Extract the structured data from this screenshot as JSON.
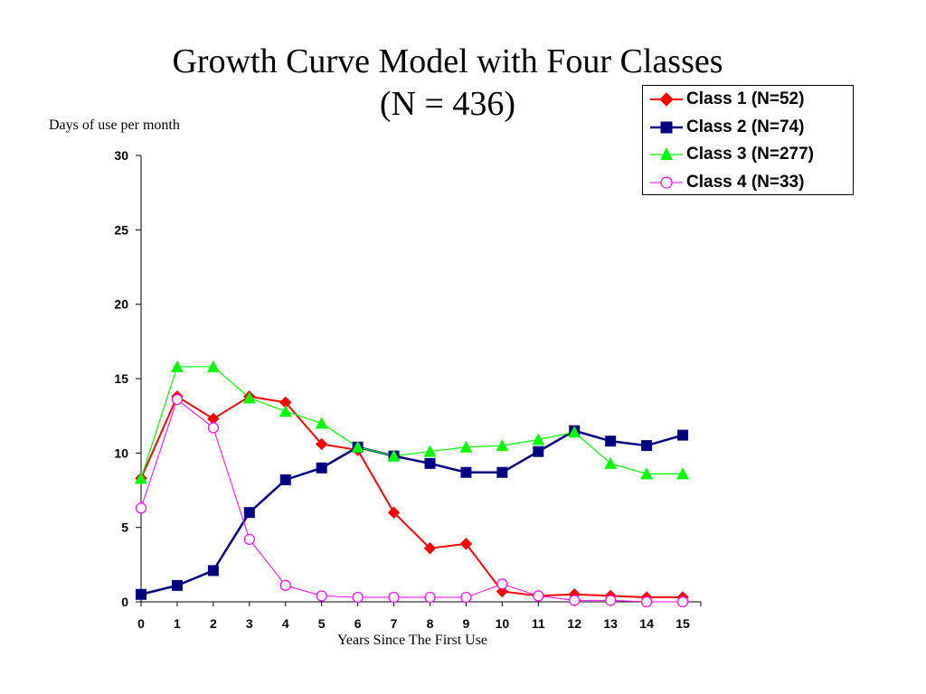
{
  "chart_data": {
    "type": "line",
    "title": "Growth Curve Model with Four Classes",
    "subtitle": "(N = 436)",
    "xlabel": "Years Since The First Use",
    "ylabel": "Days of use per month",
    "x": [
      0,
      1,
      2,
      3,
      4,
      5,
      6,
      7,
      8,
      9,
      10,
      11,
      12,
      13,
      14,
      15
    ],
    "xlim": [
      0,
      15.5
    ],
    "ylim": [
      0,
      30
    ],
    "yticks": [
      0,
      5,
      10,
      15,
      20,
      25,
      30
    ],
    "grid": false,
    "legend_position": "top-right",
    "series": [
      {
        "name": "Class 1 (N=52)",
        "color": "#ff0000",
        "marker": "diamond",
        "values": [
          8.3,
          13.8,
          12.3,
          13.8,
          13.4,
          10.6,
          10.2,
          6.0,
          3.6,
          3.9,
          0.7,
          0.4,
          0.5,
          0.4,
          0.3,
          0.3
        ]
      },
      {
        "name": "Class 2 (N=74)",
        "color": "#000080",
        "marker": "square",
        "values": [
          0.5,
          1.1,
          2.1,
          6.0,
          8.2,
          9.0,
          10.4,
          9.8,
          9.3,
          8.7,
          8.7,
          10.1,
          11.5,
          10.8,
          10.5,
          11.2
        ]
      },
      {
        "name": "Class 3 (N=277)",
        "color": "#00ff00",
        "marker": "triangle",
        "values": [
          8.3,
          15.8,
          15.8,
          13.7,
          12.8,
          12.0,
          10.4,
          9.8,
          10.1,
          10.4,
          10.5,
          10.9,
          11.4,
          9.3,
          8.6,
          8.6
        ]
      },
      {
        "name": "Class 4 (N=33)",
        "color": "#ff00ff",
        "marker": "circle-open",
        "values": [
          6.3,
          13.6,
          11.7,
          4.2,
          1.1,
          0.4,
          0.3,
          0.3,
          0.3,
          0.3,
          1.2,
          0.4,
          0.1,
          0.1,
          0.0,
          0.0
        ]
      }
    ]
  }
}
